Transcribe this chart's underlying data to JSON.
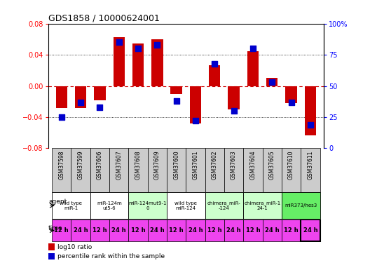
{
  "title": "GDS1858 / 10000624001",
  "samples": [
    "GSM37598",
    "GSM37599",
    "GSM37606",
    "GSM37607",
    "GSM37608",
    "GSM37609",
    "GSM37600",
    "GSM37601",
    "GSM37602",
    "GSM37603",
    "GSM37604",
    "GSM37605",
    "GSM37610",
    "GSM37611"
  ],
  "log10_ratio": [
    -0.028,
    -0.028,
    -0.018,
    0.063,
    0.055,
    0.06,
    -0.01,
    -0.048,
    0.027,
    -0.03,
    0.045,
    0.01,
    -0.022,
    -0.063
  ],
  "percentile": [
    25,
    37,
    33,
    85,
    80,
    83,
    38,
    22,
    68,
    30,
    80,
    53,
    37,
    19
  ],
  "ylim_left": [
    -0.08,
    0.08
  ],
  "ylim_right": [
    0,
    100
  ],
  "yticks_left": [
    -0.08,
    -0.04,
    0,
    0.04,
    0.08
  ],
  "yticks_right": [
    0,
    25,
    50,
    75,
    100
  ],
  "bar_color": "#cc0000",
  "dot_color": "#0000cc",
  "agent_groups": [
    {
      "label": "wild type\nmiR-1",
      "cols": [
        0,
        1
      ],
      "color": "#ffffff"
    },
    {
      "label": "miR-124m\nut5-6",
      "cols": [
        2,
        3
      ],
      "color": "#ffffff"
    },
    {
      "label": "miR-124mut9-1\n0",
      "cols": [
        4,
        5
      ],
      "color": "#ccffcc"
    },
    {
      "label": "wild type\nmiR-124",
      "cols": [
        6,
        7
      ],
      "color": "#ffffff"
    },
    {
      "label": "chimera_miR-\n-124",
      "cols": [
        8,
        9
      ],
      "color": "#ccffcc"
    },
    {
      "label": "chimera_miR-1\n24-1",
      "cols": [
        10,
        11
      ],
      "color": "#ccffcc"
    },
    {
      "label": "miR373/hes3",
      "cols": [
        12,
        13
      ],
      "color": "#66ee66"
    }
  ],
  "time_labels": [
    "12 h",
    "24 h",
    "12 h",
    "24 h",
    "12 h",
    "24 h",
    "12 h",
    "24 h",
    "12 h",
    "24 h",
    "12 h",
    "24 h",
    "12 h",
    "24 h"
  ],
  "time_color": "#ee44ee",
  "legend_red": "log10 ratio",
  "legend_blue": "percentile rank within the sample",
  "background_color": "#ffffff",
  "sample_bg": "#cccccc",
  "dotted_line_color": "#888888",
  "zero_line_color": "#cc0000"
}
